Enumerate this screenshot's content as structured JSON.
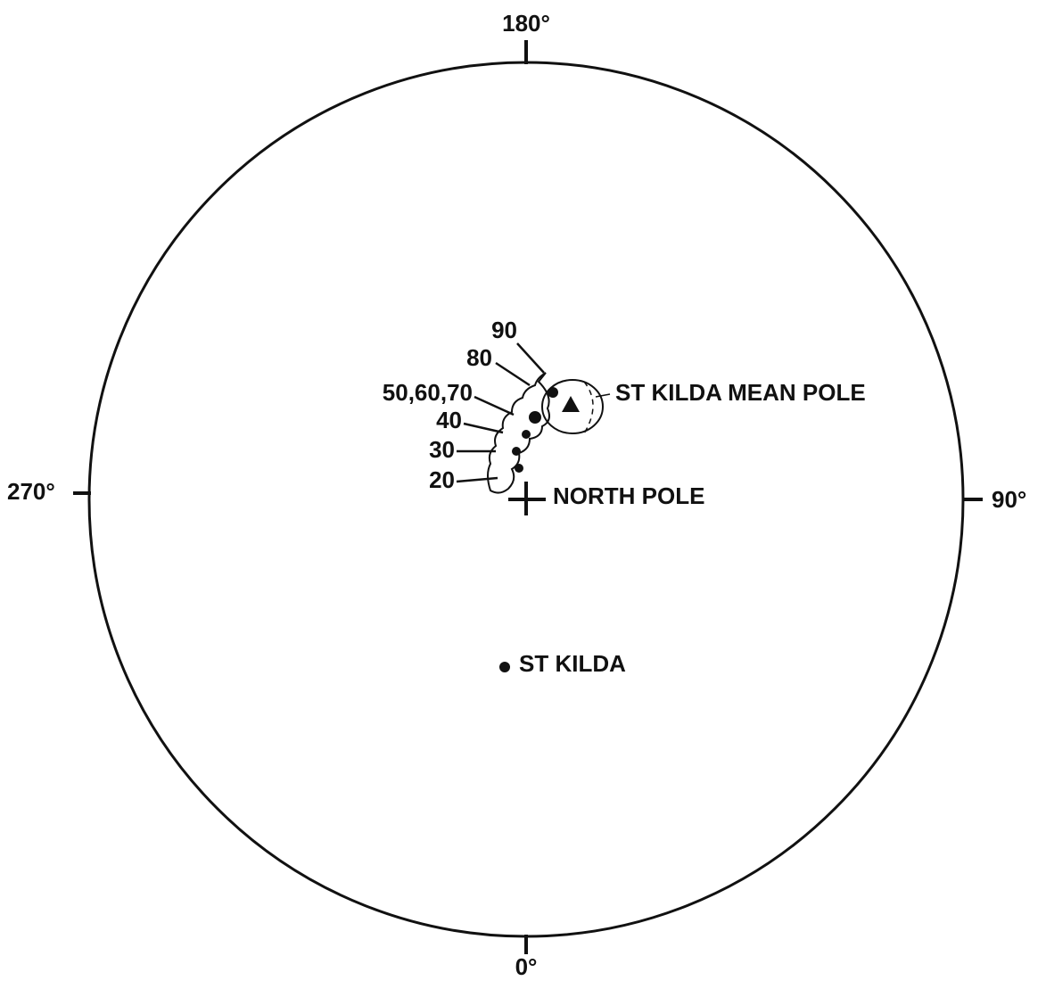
{
  "bearings": {
    "top": "180°",
    "bottom": "0°",
    "left": "270°",
    "right": "90°"
  },
  "age_labels": [
    "90",
    "80",
    "50,60,70",
    "40",
    "30",
    "20"
  ],
  "annotations": {
    "mean_pole": "ST KILDA MEAN POLE",
    "north_pole": "NORTH POLE",
    "site": "ST KILDA"
  }
}
